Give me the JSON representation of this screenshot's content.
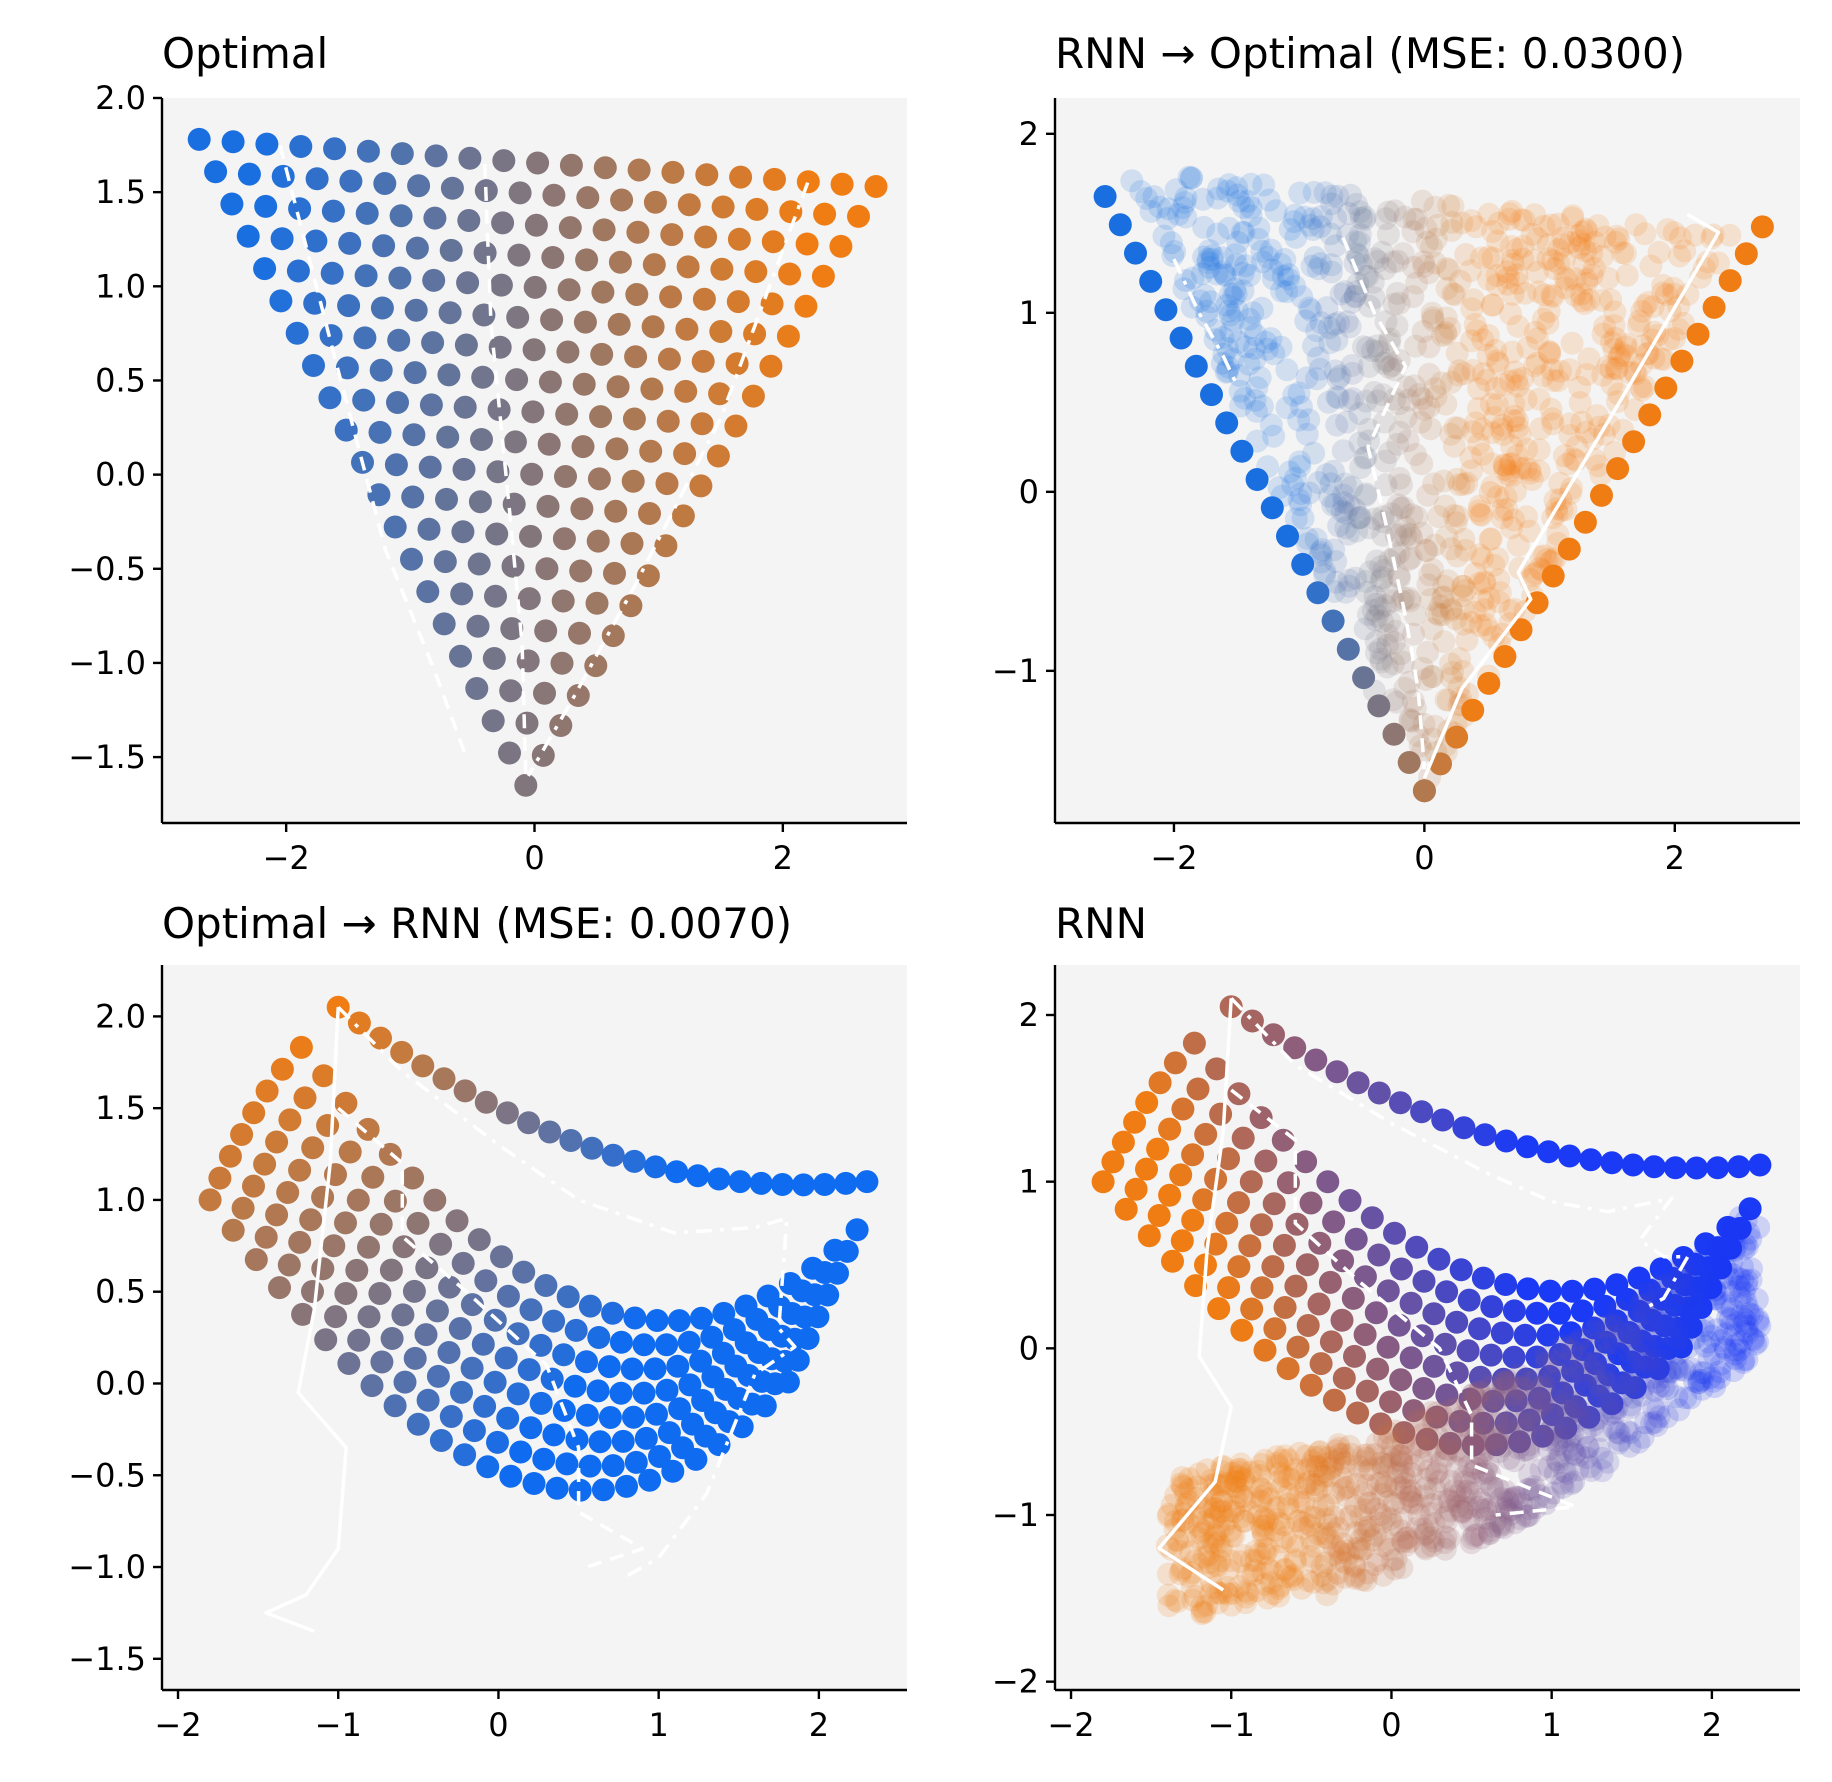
{
  "figure": {
    "background": "#ffffff"
  },
  "colors": {
    "blue": "#1a6fe0",
    "orange": "#f07d14",
    "panel_bg": "#f4f4f4",
    "blue_dark": "#1a3af5",
    "blue_light": "#0f6cf0"
  },
  "chart_data": [
    {
      "type": "scatter",
      "title": "Optimal",
      "xlim": [
        -3.0,
        3.0
      ],
      "ylim": [
        -1.85,
        2.0
      ],
      "xticks": [
        -2,
        0,
        2
      ],
      "xticklabels": [
        "−2",
        "0",
        "2"
      ],
      "yticks": [
        -1.5,
        -1.0,
        -0.5,
        0.0,
        0.5,
        1.0,
        1.5,
        2.0
      ],
      "yticklabels": [
        "−1.5",
        "−1.0",
        "−0.5",
        "0.0",
        "0.5",
        "1.0",
        "1.5",
        "2.0"
      ],
      "series": [
        {
          "name": "grid",
          "kind": "triangle_grid",
          "corners": [
            [
              -2.7,
              1.78
            ],
            [
              2.75,
              1.53
            ],
            [
              -0.07,
              -1.65
            ]
          ],
          "rows": 21
        }
      ],
      "lines": [
        {
          "style": "dashed",
          "points": [
            [
              -2.05,
              1.75
            ],
            [
              -1.6,
              0.6
            ],
            [
              -1.2,
              -0.4
            ],
            [
              -0.8,
              -1.05
            ],
            [
              -0.55,
              -1.5
            ]
          ]
        },
        {
          "style": "dashed",
          "points": [
            [
              -0.4,
              1.65
            ],
            [
              -0.35,
              0.8
            ],
            [
              -0.2,
              -0.2
            ],
            [
              -0.1,
              -0.9
            ],
            [
              -0.07,
              -1.6
            ]
          ]
        },
        {
          "style": "dashdot",
          "points": [
            [
              2.2,
              1.55
            ],
            [
              1.5,
              0.3
            ],
            [
              0.8,
              -0.6
            ],
            [
              0.3,
              -1.2
            ],
            [
              -0.05,
              -1.6
            ]
          ]
        }
      ]
    },
    {
      "type": "scatter",
      "title": "RNN → Optimal (MSE: 0.0300)",
      "xlim": [
        -2.95,
        3.0
      ],
      "ylim": [
        -1.85,
        2.2
      ],
      "xticks": [
        -2,
        0,
        2
      ],
      "xticklabels": [
        "−2",
        "0",
        "2"
      ],
      "yticks": [
        -1,
        0,
        1,
        2
      ],
      "yticklabels": [
        "−1",
        "0",
        "1",
        "2"
      ],
      "series": [
        {
          "name": "cloud",
          "kind": "triangle_cloud",
          "corners": [
            [
              -2.4,
              1.8
            ],
            [
              2.5,
              1.45
            ],
            [
              0.0,
              -1.7
            ]
          ],
          "count": 900
        },
        {
          "name": "edge-left",
          "kind": "edge",
          "points": [
            [
              -2.55,
              1.65
            ],
            [
              0.0,
              -1.67
            ]
          ],
          "count": 22
        },
        {
          "name": "edge-right",
          "kind": "edge",
          "points": [
            [
              2.7,
              1.48
            ],
            [
              0.0,
              -1.67
            ]
          ],
          "count": 22
        }
      ],
      "lines": [
        {
          "style": "dashdot",
          "points": [
            [
              -2.0,
              1.3
            ],
            [
              -1.8,
              1.0
            ],
            [
              -1.6,
              0.75
            ],
            [
              -1.5,
              0.6
            ]
          ]
        },
        {
          "style": "dashed",
          "points": [
            [
              -0.65,
              1.42
            ],
            [
              -0.4,
              1.0
            ],
            [
              -0.15,
              0.7
            ],
            [
              -0.45,
              0.25
            ],
            [
              -0.3,
              -0.2
            ],
            [
              -0.15,
              -0.7
            ],
            [
              -0.05,
              -1.1
            ],
            [
              0.0,
              -1.55
            ]
          ]
        },
        {
          "style": "solid",
          "points": [
            [
              2.1,
              1.55
            ],
            [
              2.35,
              1.45
            ],
            [
              1.6,
              0.55
            ],
            [
              0.75,
              -0.45
            ],
            [
              0.85,
              -0.6
            ],
            [
              0.3,
              -1.1
            ],
            [
              0.0,
              -1.6
            ]
          ]
        }
      ]
    },
    {
      "type": "scatter",
      "title": "Optimal → RNN (MSE: 0.0070)",
      "xlim": [
        -2.1,
        2.55
      ],
      "ylim": [
        -1.67,
        2.28
      ],
      "xticks": [
        -2,
        -1,
        0,
        1,
        2
      ],
      "xticklabels": [
        "−2",
        "−1",
        "0",
        "1",
        "2"
      ],
      "yticks": [
        -1.5,
        -1.0,
        -0.5,
        0.0,
        0.5,
        1.0,
        1.5,
        2.0
      ],
      "yticklabels": [
        "−1.5",
        "−1.0",
        "−0.5",
        "0.0",
        "0.5",
        "1.0",
        "1.5",
        "2.0"
      ],
      "series": [
        {
          "name": "fan",
          "kind": "fan",
          "mode": "optimal",
          "count": 9
        }
      ],
      "lines": [
        {
          "style": "solid",
          "points": [
            [
              -1.0,
              2.05
            ],
            [
              -1.05,
              1.2
            ],
            [
              -1.15,
              0.4
            ],
            [
              -1.25,
              -0.05
            ],
            [
              -0.95,
              -0.35
            ],
            [
              -1.0,
              -0.9
            ],
            [
              -1.2,
              -1.15
            ],
            [
              -1.45,
              -1.25
            ],
            [
              -1.15,
              -1.35
            ]
          ]
        },
        {
          "style": "dashed",
          "points": [
            [
              -1.0,
              1.5
            ],
            [
              -0.6,
              1.2
            ],
            [
              -0.6,
              0.8
            ],
            [
              -0.2,
              0.5
            ],
            [
              0.3,
              0.1
            ],
            [
              0.5,
              -0.35
            ],
            [
              0.5,
              -0.7
            ],
            [
              0.9,
              -0.9
            ],
            [
              0.55,
              -1.0
            ]
          ]
        },
        {
          "style": "dashdot",
          "points": [
            [
              -1.0,
              2.05
            ],
            [
              -0.6,
              1.7
            ],
            [
              0.0,
              1.3
            ],
            [
              0.5,
              1.0
            ],
            [
              1.1,
              0.82
            ],
            [
              1.6,
              0.85
            ],
            [
              1.8,
              0.9
            ],
            [
              1.75,
              0.3
            ],
            [
              1.85,
              0.2
            ],
            [
              1.6,
              0.05
            ],
            [
              1.3,
              -0.6
            ],
            [
              1.0,
              -0.95
            ],
            [
              0.8,
              -1.05
            ]
          ]
        }
      ]
    },
    {
      "type": "scatter",
      "title": "RNN",
      "xlim": [
        -2.1,
        2.55
      ],
      "ylim": [
        -2.05,
        2.3
      ],
      "xticks": [
        -2,
        -1,
        0,
        1,
        2
      ],
      "xticklabels": [
        "−2",
        "−1",
        "0",
        "1",
        "2"
      ],
      "yticks": [
        -2,
        -1,
        0,
        1,
        2
      ],
      "yticklabels": [
        "−2",
        "−1",
        "0",
        "1",
        "2"
      ],
      "series": [
        {
          "name": "fan",
          "kind": "fan",
          "mode": "rnn",
          "count": 9
        },
        {
          "name": "cloud",
          "kind": "rnn_cloud",
          "count": 1000
        }
      ],
      "lines": [
        {
          "style": "dashdot",
          "points": [
            [
              -1.0,
              2.1
            ],
            [
              -0.6,
              1.7
            ],
            [
              0.0,
              1.35
            ],
            [
              0.6,
              1.05
            ],
            [
              1.0,
              0.88
            ],
            [
              1.35,
              0.82
            ],
            [
              1.75,
              0.9
            ],
            [
              1.55,
              0.65
            ],
            [
              1.7,
              0.55
            ],
            [
              1.85,
              0.55
            ],
            [
              1.7,
              0.3
            ],
            [
              1.6,
              0.25
            ]
          ]
        },
        {
          "style": "dashed",
          "points": [
            [
              -1.0,
              1.55
            ],
            [
              -0.6,
              1.25
            ],
            [
              -0.6,
              0.75
            ],
            [
              -0.2,
              0.4
            ],
            [
              0.3,
              0.0
            ],
            [
              0.5,
              -0.4
            ],
            [
              0.5,
              -0.7
            ],
            [
              1.15,
              -0.95
            ],
            [
              0.65,
              -1.0
            ]
          ]
        },
        {
          "style": "solid",
          "points": [
            [
              -1.0,
              2.1
            ],
            [
              -1.05,
              1.3
            ],
            [
              -1.15,
              0.6
            ],
            [
              -1.2,
              -0.05
            ],
            [
              -1.0,
              -0.35
            ],
            [
              -1.1,
              -0.8
            ],
            [
              -1.45,
              -1.2
            ],
            [
              -1.05,
              -1.45
            ]
          ]
        }
      ]
    }
  ]
}
